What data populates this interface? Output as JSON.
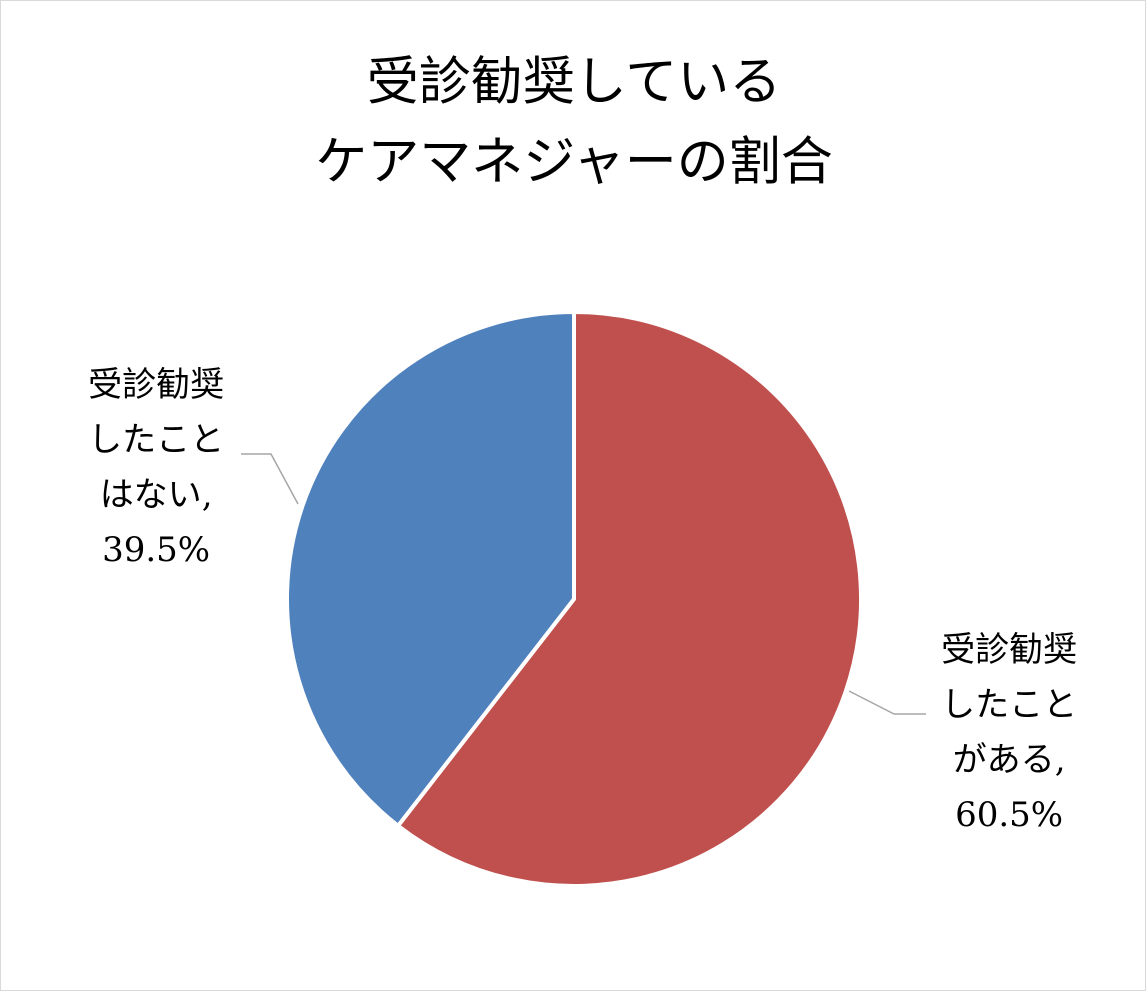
{
  "chart_data": {
    "type": "pie",
    "title": [
      "受診勧奨している",
      "ケアマネジャーの割合"
    ],
    "categories": [
      "受診勧奨したことがある",
      "受診勧奨したことはない"
    ],
    "values": [
      60.5,
      39.5
    ],
    "value_labels": [
      "60.5%",
      "39.5%"
    ],
    "label_separator": ",",
    "colors": [
      "#c0504d",
      "#4f81bd"
    ]
  }
}
